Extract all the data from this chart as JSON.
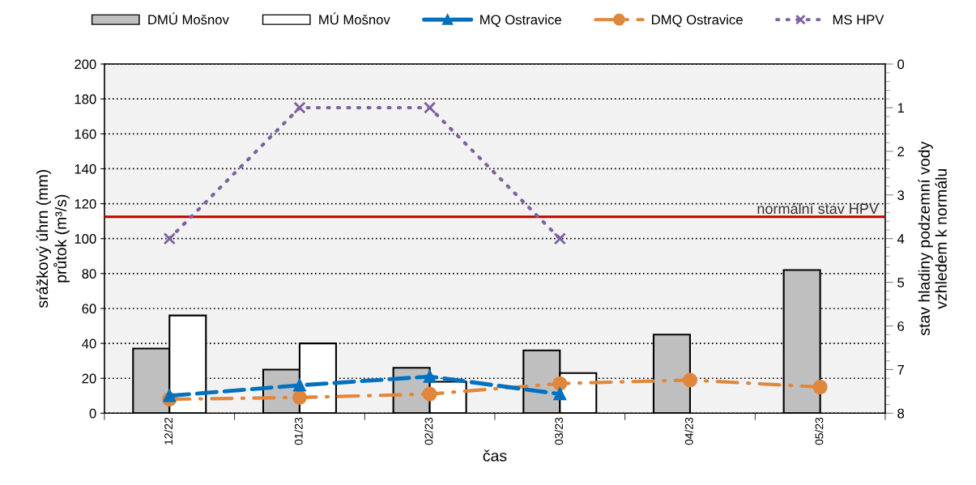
{
  "chart_data": {
    "type": "bar",
    "xlabel": "čas",
    "ylabel": "srážkový úhrn (mm)\nprůtok (m³/s)",
    "y2label": "stav hladiny podzemní vody\nvzhledem k normálu",
    "categories": [
      "12/22",
      "01/23",
      "02/23",
      "03/23",
      "04/23",
      "05/23"
    ],
    "series": [
      {
        "name": "DMÚ Mošnov",
        "color": "#bfbfbf",
        "values": [
          37,
          25,
          26,
          36,
          45,
          82
        ]
      },
      {
        "name": "MÚ Mošnov",
        "color": "#ffffff",
        "values": [
          56,
          40,
          18,
          23,
          null,
          null
        ]
      },
      {
        "name": "MQ Ostravice",
        "type": "line",
        "color": "#0070c0",
        "marker": "triangle",
        "line_style": "dashed",
        "values": [
          10,
          16,
          21,
          11,
          null,
          null
        ]
      },
      {
        "name": "DMQ Ostravice",
        "type": "line",
        "color": "#e0873b",
        "marker": "circle",
        "line_style": "dashdot",
        "values": [
          8,
          9,
          11,
          17,
          19,
          15
        ]
      },
      {
        "name": "MS HPV",
        "type": "line",
        "axis": "y2",
        "color": "#7f60a0",
        "marker": "cross",
        "line_style": "dotted",
        "values": [
          4,
          1,
          1,
          4,
          null,
          null
        ]
      }
    ],
    "ylim": [
      0,
      200
    ],
    "yticks": [
      0,
      20,
      40,
      60,
      80,
      100,
      120,
      140,
      160,
      180,
      200
    ],
    "y2lim": [
      8,
      0
    ],
    "y2ticks": [
      0,
      1,
      2,
      3,
      4,
      5,
      6,
      7,
      8
    ],
    "ref_lines": [
      {
        "axis": "y2",
        "value": 3.5,
        "label": "normální stav HPV",
        "color": "#c00000",
        "line_style": "solid"
      }
    ],
    "grid": "y",
    "legend": "top"
  }
}
